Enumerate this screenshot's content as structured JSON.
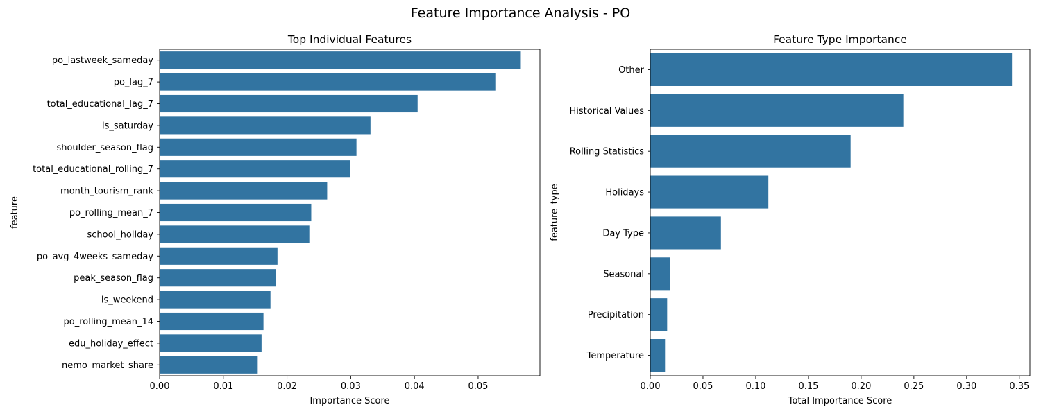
{
  "figure": {
    "title": "Feature Importance Analysis - PO"
  },
  "chart_data": [
    {
      "type": "bar",
      "orientation": "horizontal",
      "title": "Top Individual Features",
      "xlabel": "Importance Score",
      "ylabel": "feature",
      "xlim": [
        0,
        0.0597
      ],
      "xticks": [
        "0.00",
        "0.01",
        "0.02",
        "0.03",
        "0.04",
        "0.05"
      ],
      "bar_color": "#3274a1",
      "categories": [
        "po_lastweek_sameday",
        "po_lag_7",
        "total_educational_lag_7",
        "is_saturday",
        "shoulder_season_flag",
        "total_educational_rolling_7",
        "month_tourism_rank",
        "po_rolling_mean_7",
        "school_holiday",
        "po_avg_4weeks_sameday",
        "peak_season_flag",
        "is_weekend",
        "po_rolling_mean_14",
        "edu_holiday_effect",
        "nemo_market_share"
      ],
      "values": [
        0.0567,
        0.0527,
        0.0405,
        0.0331,
        0.0309,
        0.0299,
        0.0263,
        0.0238,
        0.0235,
        0.0185,
        0.0182,
        0.0174,
        0.0163,
        0.016,
        0.0154
      ]
    },
    {
      "type": "bar",
      "orientation": "horizontal",
      "title": "Feature Type Importance",
      "xlabel": "Total Importance Score",
      "ylabel": "feature_type",
      "xlim": [
        0,
        0.36
      ],
      "xticks": [
        "0.00",
        "0.05",
        "0.10",
        "0.15",
        "0.20",
        "0.25",
        "0.30",
        "0.35"
      ],
      "bar_color": "#3274a1",
      "categories": [
        "Other",
        "Historical Values",
        "Rolling Statistics",
        "Holidays",
        "Day Type",
        "Seasonal",
        "Precipitation",
        "Temperature"
      ],
      "values": [
        0.343,
        0.24,
        0.19,
        0.112,
        0.067,
        0.019,
        0.016,
        0.014
      ]
    }
  ]
}
